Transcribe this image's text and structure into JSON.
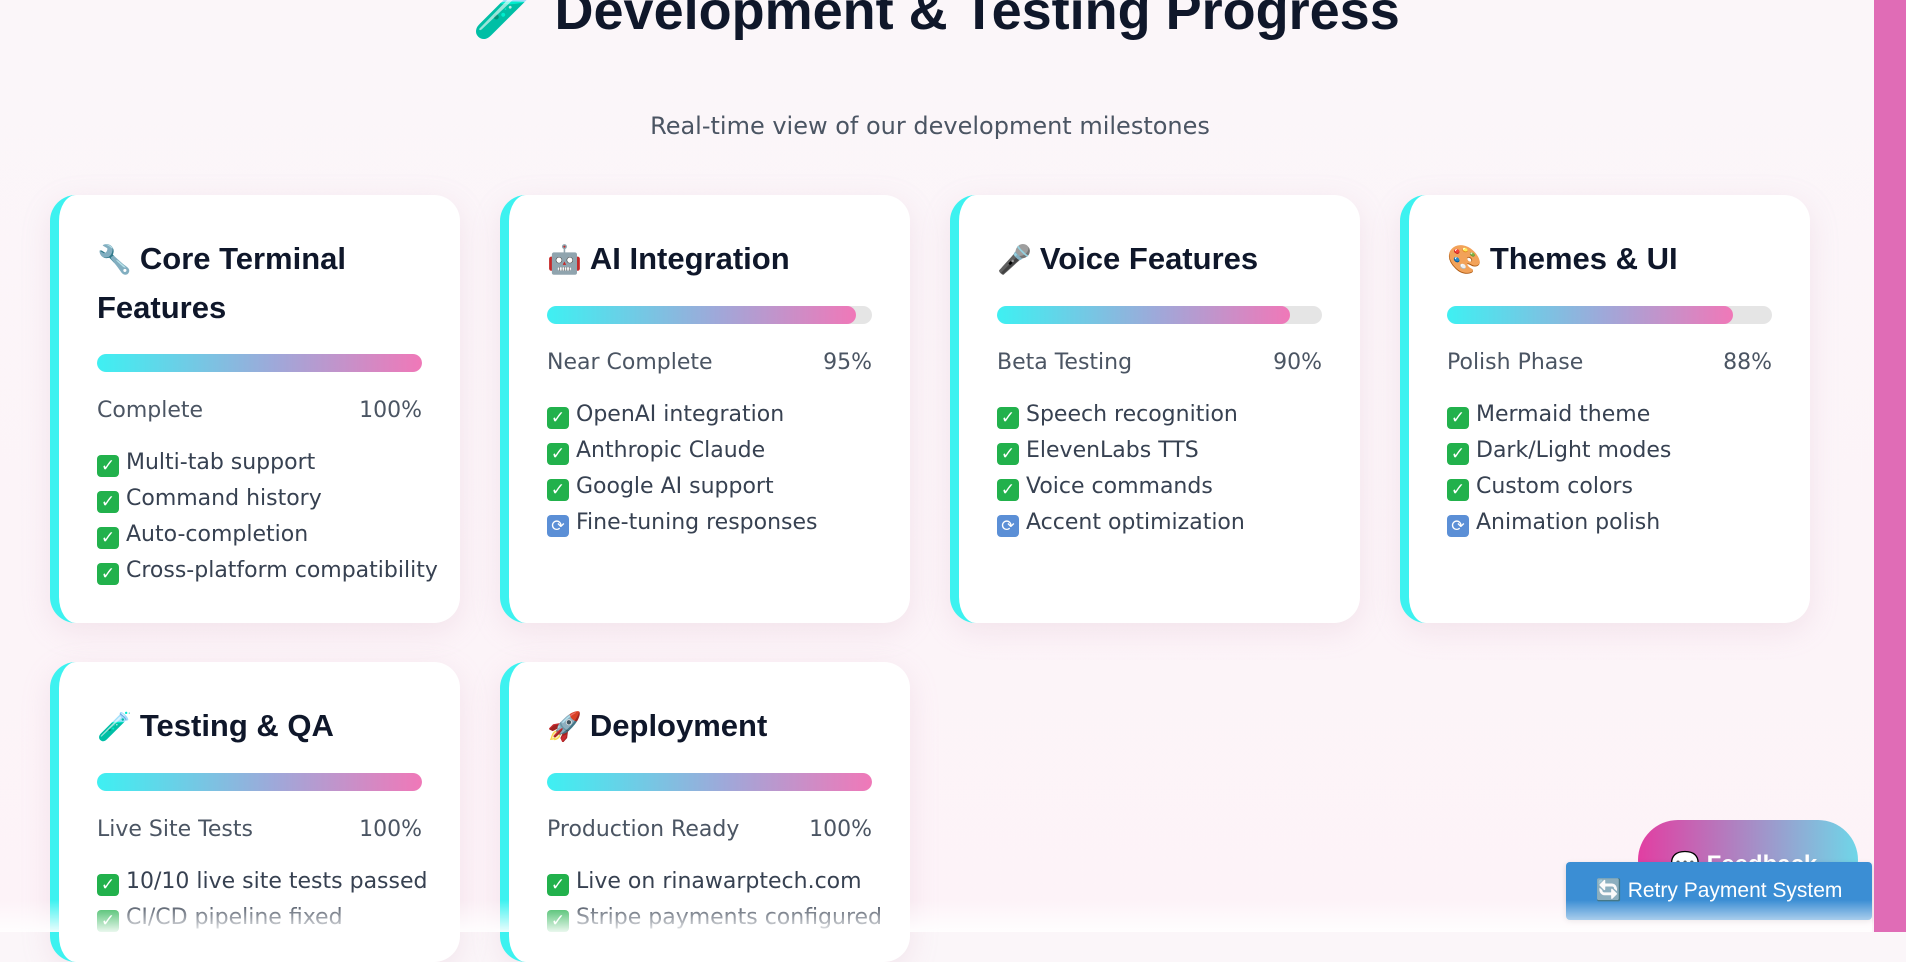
{
  "page": {
    "title_icon": "🧪",
    "title": "Development & Testing Progress",
    "subtitle": "Real-time view of our development milestones"
  },
  "cards": [
    {
      "icon": "🔧",
      "title": "Core Terminal Features",
      "status": "Complete",
      "percent_label": "100%",
      "progress": 100,
      "items": [
        {
          "mark": "check",
          "text": "Multi-tab support"
        },
        {
          "mark": "check",
          "text": "Command history"
        },
        {
          "mark": "check",
          "text": "Auto-completion"
        },
        {
          "mark": "check",
          "text": "Cross-platform compatibility"
        }
      ]
    },
    {
      "icon": "🤖",
      "title": "AI Integration",
      "status": "Near Complete",
      "percent_label": "95%",
      "progress": 95,
      "items": [
        {
          "mark": "check",
          "text": "OpenAI integration"
        },
        {
          "mark": "check",
          "text": "Anthropic Claude"
        },
        {
          "mark": "check",
          "text": "Google AI support"
        },
        {
          "mark": "refresh",
          "text": "Fine-tuning responses"
        }
      ]
    },
    {
      "icon": "🎤",
      "title": "Voice Features",
      "status": "Beta Testing",
      "percent_label": "90%",
      "progress": 90,
      "items": [
        {
          "mark": "check",
          "text": "Speech recognition"
        },
        {
          "mark": "check",
          "text": "ElevenLabs TTS"
        },
        {
          "mark": "check",
          "text": "Voice commands"
        },
        {
          "mark": "refresh",
          "text": "Accent optimization"
        }
      ]
    },
    {
      "icon": "🎨",
      "title": "Themes & UI",
      "status": "Polish Phase",
      "percent_label": "88%",
      "progress": 88,
      "items": [
        {
          "mark": "check",
          "text": "Mermaid theme"
        },
        {
          "mark": "check",
          "text": "Dark/Light modes"
        },
        {
          "mark": "check",
          "text": "Custom colors"
        },
        {
          "mark": "refresh",
          "text": "Animation polish"
        }
      ]
    },
    {
      "icon": "🧪",
      "title": "Testing & QA",
      "status": "Live Site Tests",
      "percent_label": "100%",
      "progress": 100,
      "items": [
        {
          "mark": "check",
          "text": "10/10 live site tests passed"
        },
        {
          "mark": "check",
          "text": "CI/CD pipeline fixed"
        }
      ]
    },
    {
      "icon": "🚀",
      "title": "Deployment",
      "status": "Production Ready",
      "percent_label": "100%",
      "progress": 100,
      "items": [
        {
          "mark": "check",
          "text": "Live on rinawarptech.com"
        },
        {
          "mark": "check",
          "text": "Stripe payments configured"
        }
      ]
    }
  ],
  "widgets": {
    "feedback_label": "Feedback",
    "retry_icon": "🔄",
    "retry_label": "Retry Payment System"
  },
  "colors": {
    "accent_cyan": "#3df2f0",
    "accent_pink": "#f078b8",
    "scrollbar": "#e06cb6",
    "retry_button": "#3b8ed4"
  }
}
